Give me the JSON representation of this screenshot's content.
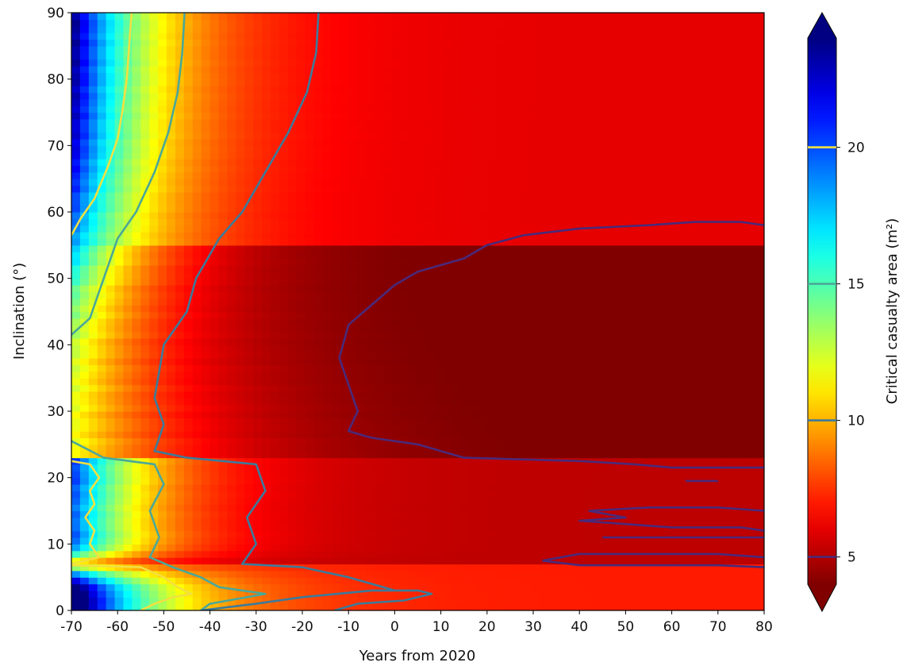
{
  "chart_data": {
    "type": "heatmap",
    "title": "",
    "xlabel": "Years from 2020",
    "ylabel": "Inclination (°)",
    "xlim": [
      -70,
      80
    ],
    "ylim": [
      0,
      90
    ],
    "xticks": [
      "-70",
      "-60",
      "-50",
      "-40",
      "-30",
      "-20",
      "-10",
      "0",
      "10",
      "20",
      "30",
      "40",
      "50",
      "60",
      "70",
      "80"
    ],
    "yticks": [
      "0",
      "10",
      "20",
      "30",
      "40",
      "50",
      "60",
      "70",
      "80",
      "90"
    ],
    "colorbar": {
      "label": "Critical casualty area (m²)",
      "range": [
        4,
        24
      ],
      "extend": "both",
      "colormap": "jet_r",
      "ticks": [
        "5",
        "10",
        "15",
        "20"
      ],
      "contour_levels": [
        5,
        10,
        15,
        20
      ],
      "contour_colors": [
        "#4a2a7a",
        "#3d7a9a",
        "#4aa898",
        "#f2e040"
      ]
    },
    "contours": [
      {
        "level": 20,
        "color": "#f2e040",
        "points": [
          [
            -70,
            56.5
          ],
          [
            -68,
            59
          ],
          [
            -65,
            62
          ],
          [
            -62,
            67
          ],
          [
            -60,
            71
          ],
          [
            -59,
            75
          ],
          [
            -58,
            80
          ],
          [
            -57.5,
            85
          ],
          [
            -57,
            90
          ]
        ]
      },
      {
        "level": 20,
        "color": "#f2e040",
        "points": [
          [
            -70,
            22.5
          ],
          [
            -66,
            22
          ],
          [
            -64,
            20
          ],
          [
            -66,
            18
          ],
          [
            -65,
            16
          ],
          [
            -67,
            14
          ],
          [
            -65,
            12
          ],
          [
            -66,
            10
          ],
          [
            -64,
            8
          ],
          [
            -70,
            7
          ]
        ]
      },
      {
        "level": 20,
        "color": "#f2e040",
        "points": [
          [
            -70,
            6.8
          ],
          [
            -55,
            6.5
          ],
          [
            -50,
            5
          ],
          [
            -47,
            3.5
          ],
          [
            -44,
            2.5
          ],
          [
            -48,
            2
          ],
          [
            -52,
            1
          ],
          [
            -55,
            0
          ]
        ]
      },
      {
        "level": 15,
        "color": "#4aa898",
        "points": [
          [
            -70,
            41.5
          ],
          [
            -66,
            44
          ],
          [
            -64,
            48
          ],
          [
            -62,
            52
          ],
          [
            -60,
            56
          ],
          [
            -56,
            60
          ],
          [
            -52,
            66
          ],
          [
            -49,
            72
          ],
          [
            -47,
            78
          ],
          [
            -46,
            84
          ],
          [
            -45.5,
            90
          ]
        ]
      },
      {
        "level": 15,
        "color": "#4aa898",
        "points": [
          [
            -70,
            25.5
          ],
          [
            -63,
            23
          ],
          [
            -52,
            22
          ],
          [
            -50,
            19
          ],
          [
            -53,
            15
          ],
          [
            -51,
            11
          ],
          [
            -53,
            8
          ],
          [
            -48,
            6.5
          ],
          [
            -42,
            5
          ],
          [
            -38,
            3.5
          ],
          [
            -28,
            2.5
          ],
          [
            -40,
            1
          ],
          [
            -42,
            0
          ]
        ]
      },
      {
        "level": 10,
        "color": "#3d7a9a",
        "points": [
          [
            -42,
            0
          ],
          [
            -30,
            1
          ],
          [
            -20,
            2
          ],
          [
            -5,
            3
          ],
          [
            5,
            3
          ],
          [
            8,
            2.5
          ],
          [
            2,
            1.5
          ],
          [
            -8,
            1
          ],
          [
            -13,
            0
          ]
        ]
      },
      {
        "level": 10,
        "color": "#3d7a9a",
        "points": [
          [
            -50,
            28
          ],
          [
            -52,
            32
          ],
          [
            -51,
            36
          ],
          [
            -50,
            40
          ],
          [
            -45,
            45
          ],
          [
            -43,
            50
          ],
          [
            -38,
            56
          ],
          [
            -33,
            60
          ],
          [
            -28,
            66
          ],
          [
            -23,
            72
          ],
          [
            -19,
            78
          ],
          [
            -17,
            84
          ],
          [
            -16.5,
            90
          ]
        ]
      },
      {
        "level": 10,
        "color": "#3d7a9a",
        "points": [
          [
            -50,
            28
          ],
          [
            -52,
            24
          ],
          [
            -45,
            23
          ],
          [
            -30,
            22
          ],
          [
            -28,
            18
          ],
          [
            -32,
            14
          ],
          [
            -30,
            10
          ],
          [
            -33,
            7
          ],
          [
            -20,
            6.5
          ],
          [
            -10,
            5
          ],
          [
            -5,
            4
          ],
          [
            0,
            3
          ]
        ]
      },
      {
        "level": 5,
        "color": "#4a2a7a",
        "points": [
          [
            -12,
            38
          ],
          [
            -10,
            43
          ],
          [
            -5,
            46
          ],
          [
            0,
            49
          ],
          [
            5,
            51
          ],
          [
            15,
            53
          ],
          [
            20,
            55
          ],
          [
            28,
            56.5
          ],
          [
            40,
            57.5
          ],
          [
            55,
            58
          ],
          [
            65,
            58.5
          ],
          [
            75,
            58.5
          ],
          [
            80,
            58
          ]
        ]
      },
      {
        "level": 5,
        "color": "#4a2a7a",
        "points": [
          [
            -12,
            38
          ],
          [
            -10,
            34
          ],
          [
            -8,
            30
          ],
          [
            -10,
            27
          ],
          [
            -5,
            26
          ],
          [
            5,
            25
          ],
          [
            15,
            23
          ],
          [
            40,
            22.5
          ],
          [
            52,
            22
          ],
          [
            60,
            21.5
          ],
          [
            70,
            21.5
          ],
          [
            80,
            21.5
          ]
        ]
      },
      {
        "level": 5,
        "color": "#4a2a7a",
        "points": [
          [
            32,
            7.5
          ],
          [
            40,
            8.5
          ],
          [
            55,
            8.5
          ],
          [
            70,
            8.5
          ],
          [
            80,
            8
          ]
        ]
      },
      {
        "level": 5,
        "color": "#4a2a7a",
        "points": [
          [
            32,
            7.5
          ],
          [
            40,
            6.8
          ],
          [
            55,
            6.8
          ],
          [
            70,
            6.8
          ],
          [
            80,
            6.5
          ]
        ]
      },
      {
        "level": 5,
        "color": "#4a2a7a",
        "points": [
          [
            42,
            15
          ],
          [
            55,
            15.5
          ],
          [
            70,
            15.5
          ],
          [
            80,
            15
          ]
        ]
      },
      {
        "level": 5,
        "color": "#4a2a7a",
        "points": [
          [
            42,
            15
          ],
          [
            50,
            14
          ],
          [
            40,
            13.5
          ],
          [
            50,
            13
          ],
          [
            60,
            12.5
          ],
          [
            75,
            12.5
          ],
          [
            80,
            12
          ]
        ]
      },
      {
        "level": 5,
        "color": "#4a2a7a",
        "points": [
          [
            45,
            11
          ],
          [
            60,
            11
          ],
          [
            75,
            11
          ],
          [
            80,
            11
          ]
        ]
      },
      {
        "level": 5,
        "color": "#4a2a7a",
        "points": [
          [
            63,
            19.5
          ],
          [
            70,
            19.5
          ]
        ]
      }
    ]
  }
}
